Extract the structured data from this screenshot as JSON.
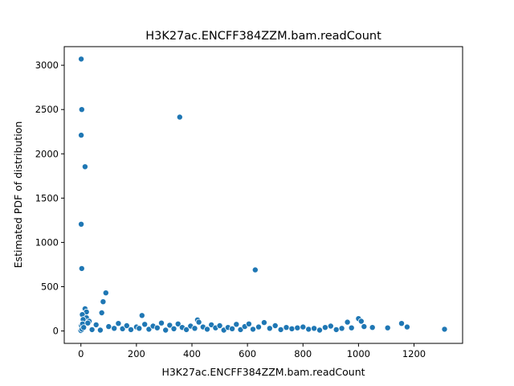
{
  "chart_data": {
    "type": "scatter",
    "title": "H3K27ac.ENCFF384ZZM.bam.readCount",
    "xlabel": "H3K27ac.ENCFF384ZZM.bam.readCount",
    "ylabel": "Estimated PDF of distribution",
    "xlim": [
      -60,
      1375
    ],
    "ylim": [
      -140,
      3210
    ],
    "xticks": [
      0,
      200,
      400,
      600,
      800,
      1000,
      1200
    ],
    "yticks": [
      0,
      500,
      1000,
      1500,
      2000,
      2500,
      3000
    ],
    "grid": false,
    "marker_color": "#1f77b4",
    "points": {
      "x": [
        1,
        3,
        1,
        15,
        356,
        1,
        3,
        628,
        90,
        80,
        15,
        20,
        75,
        220,
        5,
        20,
        8,
        30,
        0,
        2,
        4,
        6,
        10,
        25,
        40,
        55,
        70,
        100,
        120,
        135,
        150,
        165,
        180,
        200,
        210,
        230,
        245,
        260,
        275,
        290,
        305,
        320,
        335,
        350,
        365,
        380,
        395,
        410,
        420,
        425,
        440,
        455,
        470,
        485,
        500,
        515,
        530,
        545,
        560,
        575,
        590,
        605,
        620,
        640,
        660,
        680,
        700,
        720,
        740,
        760,
        780,
        800,
        820,
        840,
        860,
        880,
        900,
        920,
        940,
        960,
        975,
        1000,
        1010,
        1020,
        1050,
        1105,
        1155,
        1175,
        1310
      ],
      "y": [
        3070,
        2500,
        2210,
        1855,
        2415,
        1205,
        705,
        690,
        430,
        330,
        250,
        215,
        205,
        175,
        185,
        150,
        130,
        110,
        5,
        60,
        20,
        80,
        40,
        90,
        15,
        70,
        10,
        50,
        30,
        85,
        25,
        60,
        15,
        45,
        30,
        75,
        20,
        55,
        35,
        90,
        10,
        65,
        25,
        80,
        40,
        15,
        55,
        30,
        125,
        100,
        45,
        20,
        70,
        35,
        60,
        10,
        40,
        25,
        75,
        15,
        50,
        80,
        20,
        45,
        95,
        30,
        60,
        15,
        40,
        25,
        35,
        45,
        20,
        30,
        10,
        40,
        55,
        15,
        30,
        100,
        35,
        140,
        110,
        50,
        40,
        35,
        85,
        45,
        20
      ]
    }
  }
}
